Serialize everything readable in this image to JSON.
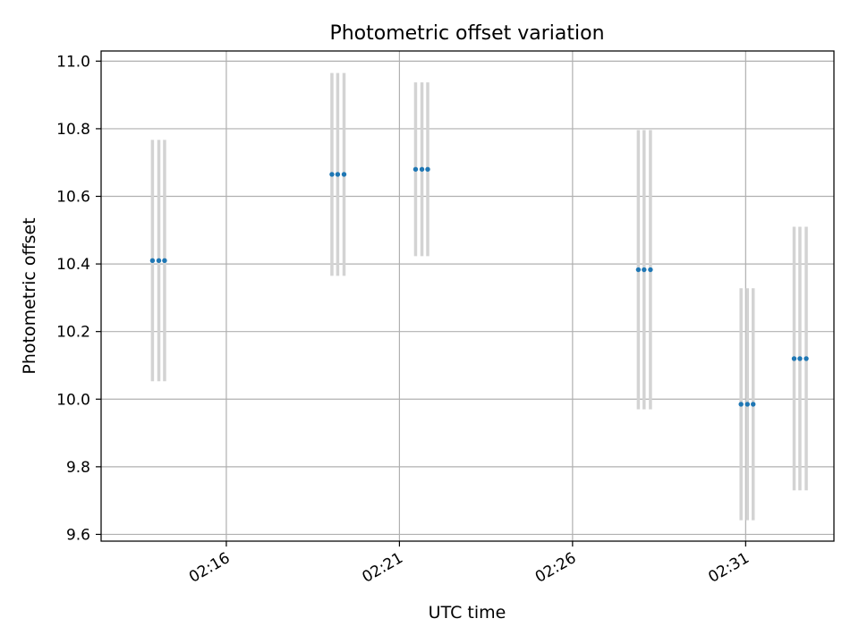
{
  "chart_data": {
    "type": "scatter",
    "title": "Photometric offset variation",
    "xlabel": "UTC time",
    "ylabel": "Photometric offset",
    "x_ticks": [
      "02:16",
      "02:21",
      "02:26",
      "02:31"
    ],
    "x_tick_minutes": [
      16,
      21,
      26,
      31
    ],
    "x_tick_hour": 2,
    "xlim": [
      "02:12:23",
      "02:33:33"
    ],
    "ylim": [
      9.58,
      11.03
    ],
    "y_ticks": [
      9.6,
      9.8,
      10.0,
      10.2,
      10.4,
      10.6,
      10.8,
      11.0
    ],
    "grid": true,
    "marker_color": "#1f77b4",
    "errorbar_color": "#d3d3d3",
    "series": [
      {
        "points": [
          {
            "time": "02:13:52",
            "y": 10.41,
            "yerr": 0.357
          },
          {
            "time": "02:14:03",
            "y": 10.41,
            "yerr": 0.357
          },
          {
            "time": "02:14:13",
            "y": 10.41,
            "yerr": 0.357
          },
          {
            "time": "02:19:03",
            "y": 10.665,
            "yerr": 0.3
          },
          {
            "time": "02:19:13",
            "y": 10.665,
            "yerr": 0.3
          },
          {
            "time": "02:19:24",
            "y": 10.665,
            "yerr": 0.3
          },
          {
            "time": "02:21:28",
            "y": 10.68,
            "yerr": 0.257
          },
          {
            "time": "02:21:39",
            "y": 10.68,
            "yerr": 0.257
          },
          {
            "time": "02:21:49",
            "y": 10.68,
            "yerr": 0.257
          },
          {
            "time": "02:27:54",
            "y": 10.383,
            "yerr": 0.413
          },
          {
            "time": "02:28:04",
            "y": 10.383,
            "yerr": 0.413
          },
          {
            "time": "02:28:15",
            "y": 10.383,
            "yerr": 0.413
          },
          {
            "time": "02:30:52",
            "y": 9.985,
            "yerr": 0.343
          },
          {
            "time": "02:31:03",
            "y": 9.985,
            "yerr": 0.343
          },
          {
            "time": "02:31:13",
            "y": 9.985,
            "yerr": 0.343
          },
          {
            "time": "02:32:24",
            "y": 10.12,
            "yerr": 0.39
          },
          {
            "time": "02:32:34",
            "y": 10.12,
            "yerr": 0.39
          },
          {
            "time": "02:32:45",
            "y": 10.12,
            "yerr": 0.39
          }
        ]
      }
    ]
  }
}
